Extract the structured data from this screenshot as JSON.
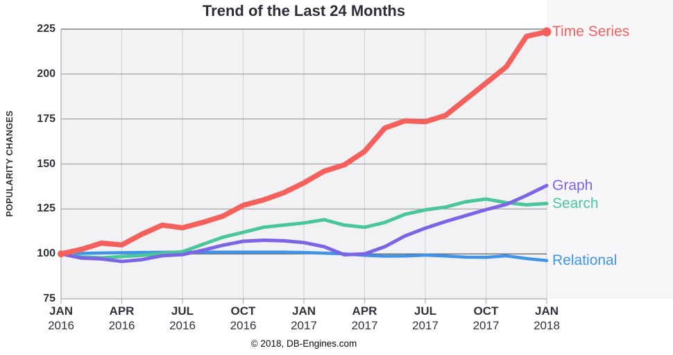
{
  "colors": {
    "plot_bg": "#f2f2f4",
    "right_panel_bg": "#f7f7f9",
    "grid_horizontal": "#909095",
    "grid_top": "#84848a",
    "grid_baseline_100": "#4a4a52",
    "grid_vertical": "#cdd0d4",
    "axis_line": "#9a9aa0",
    "tick_mark": "#a6a6ac",
    "text": "#31313c"
  },
  "chart_data": {
    "type": "line",
    "title": "Trend of the Last 24 Months",
    "ylabel": "POPULARITY CHANGES",
    "xlabel": "",
    "source": "© 2018, DB-Engines.com",
    "grid": true,
    "legend_position": "right-end-labels",
    "ylim": [
      75,
      225
    ],
    "y_ticks": [
      225,
      200,
      175,
      150,
      125,
      100,
      75
    ],
    "x": [
      "2016-01",
      "2016-02",
      "2016-03",
      "2016-04",
      "2016-05",
      "2016-06",
      "2016-07",
      "2016-08",
      "2016-09",
      "2016-10",
      "2016-11",
      "2016-12",
      "2017-01",
      "2017-02",
      "2017-03",
      "2017-04",
      "2017-05",
      "2017-06",
      "2017-07",
      "2017-08",
      "2017-09",
      "2017-10",
      "2017-11",
      "2017-12",
      "2018-01"
    ],
    "x_axis_ticks": [
      {
        "month": "JAN",
        "year": "2016",
        "index": 0
      },
      {
        "month": "APR",
        "year": "2016",
        "index": 3
      },
      {
        "month": "JUL",
        "year": "2016",
        "index": 6
      },
      {
        "month": "OCT",
        "year": "2016",
        "index": 9
      },
      {
        "month": "JAN",
        "year": "2017",
        "index": 12
      },
      {
        "month": "APR",
        "year": "2017",
        "index": 15
      },
      {
        "month": "JUL",
        "year": "2017",
        "index": 18
      },
      {
        "month": "OCT",
        "year": "2017",
        "index": 21
      },
      {
        "month": "JAN",
        "year": "2018",
        "index": 24
      }
    ],
    "series": [
      {
        "name": "Time Series",
        "color": "#f4615c",
        "stroke_width": 7.5,
        "markers": {
          "start": true,
          "end": true
        },
        "values": [
          100,
          102.5,
          106,
          105,
          111,
          116,
          114.5,
          117.5,
          121,
          127,
          130,
          134,
          139.5,
          146,
          149.5,
          157,
          170,
          174,
          173.5,
          177,
          186,
          195,
          204,
          221,
          223.5
        ]
      },
      {
        "name": "Graph",
        "color": "#7d64e4",
        "stroke_width": 5,
        "markers": {
          "start": false,
          "end": false
        },
        "values": [
          100,
          97.7,
          97.2,
          95.8,
          96.8,
          99,
          99.6,
          102,
          104.8,
          107,
          107.6,
          107.3,
          106.3,
          104,
          99.5,
          100,
          104,
          110,
          114.3,
          118,
          121.3,
          124.6,
          127.5,
          132.5,
          138
        ]
      },
      {
        "name": "Search",
        "color": "#4ac79a",
        "stroke_width": 5,
        "markers": {
          "start": false,
          "end": false
        },
        "values": [
          100,
          98.3,
          97.8,
          98.5,
          99.2,
          100.2,
          101.2,
          105.3,
          109.3,
          112,
          114.8,
          116,
          117.2,
          119,
          116,
          114.8,
          117.5,
          122,
          124.5,
          126,
          129,
          130.5,
          128.5,
          127.3,
          128
        ]
      },
      {
        "name": "Relational",
        "color": "#4094e8",
        "stroke_width": 4.5,
        "markers": {
          "start": false,
          "end": false
        },
        "values": [
          100,
          100.3,
          100.5,
          100.7,
          100.8,
          100.9,
          101,
          101,
          101,
          101,
          101,
          101,
          100.8,
          100.4,
          100,
          99.2,
          98.7,
          98.8,
          99.3,
          98.8,
          98.2,
          98.1,
          98.9,
          97.4,
          96.3
        ]
      }
    ]
  }
}
